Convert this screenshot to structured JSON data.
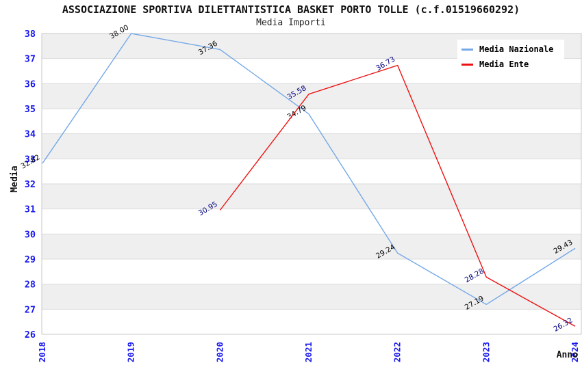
{
  "title": "ASSOCIAZIONE SPORTIVA DILETTANTISTICA BASKET PORTO TOLLE (c.f.01519660292)",
  "subtitle": "Media Importi",
  "chart_data": {
    "type": "line",
    "x": [
      2018,
      2019,
      2020,
      2021,
      2022,
      2023,
      2024
    ],
    "xlabel": "Anno",
    "ylabel": "Media",
    "ylim": [
      26,
      38
    ],
    "ytick_step": 1,
    "yticks": [
      26,
      27,
      28,
      29,
      30,
      31,
      32,
      33,
      34,
      35,
      36,
      37,
      38
    ],
    "grid": "horizontal alternating bands",
    "legend_position": "top-right",
    "series": [
      {
        "name": "Media Nazionale",
        "color": "#74A9E8",
        "label_color": "#000000",
        "values": [
          32.82,
          38.0,
          37.36,
          34.79,
          29.24,
          27.19,
          29.43
        ]
      },
      {
        "name": "Media Ente",
        "color": "#EE1111",
        "label_color": "#000080",
        "values": [
          null,
          null,
          30.95,
          35.58,
          36.73,
          28.28,
          26.32
        ]
      }
    ]
  },
  "colors": {
    "tick_label": "#1717EE",
    "axis_title": "#111111",
    "band_gray": "#EFEFEF",
    "band_white": "#FFFFFF",
    "gridline": "#DBDBDB",
    "plot_border": "#C9C9C9",
    "background": "#FFFFFF"
  }
}
